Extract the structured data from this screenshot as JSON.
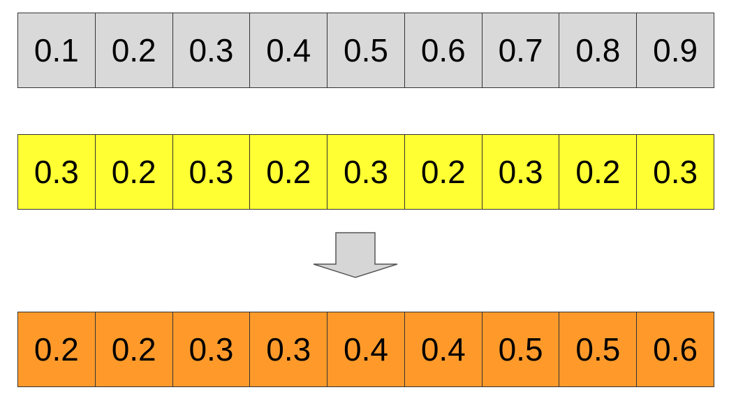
{
  "colors": {
    "top_row": "#d9d9d9",
    "middle_row": "#ffff33",
    "bottom_row": "#ff9a2a",
    "arrow_fill": "#d6d6d6",
    "arrow_stroke": "#555555",
    "border": "#333333"
  },
  "rows": {
    "top": [
      "0.1",
      "0.2",
      "0.3",
      "0.4",
      "0.5",
      "0.6",
      "0.7",
      "0.8",
      "0.9"
    ],
    "middle": [
      "0.3",
      "0.2",
      "0.3",
      "0.2",
      "0.3",
      "0.2",
      "0.3",
      "0.2",
      "0.3"
    ],
    "bottom": [
      "0.2",
      "0.2",
      "0.3",
      "0.3",
      "0.4",
      "0.4",
      "0.5",
      "0.5",
      "0.6"
    ]
  },
  "icons": {
    "arrow": "down-arrow-icon"
  }
}
